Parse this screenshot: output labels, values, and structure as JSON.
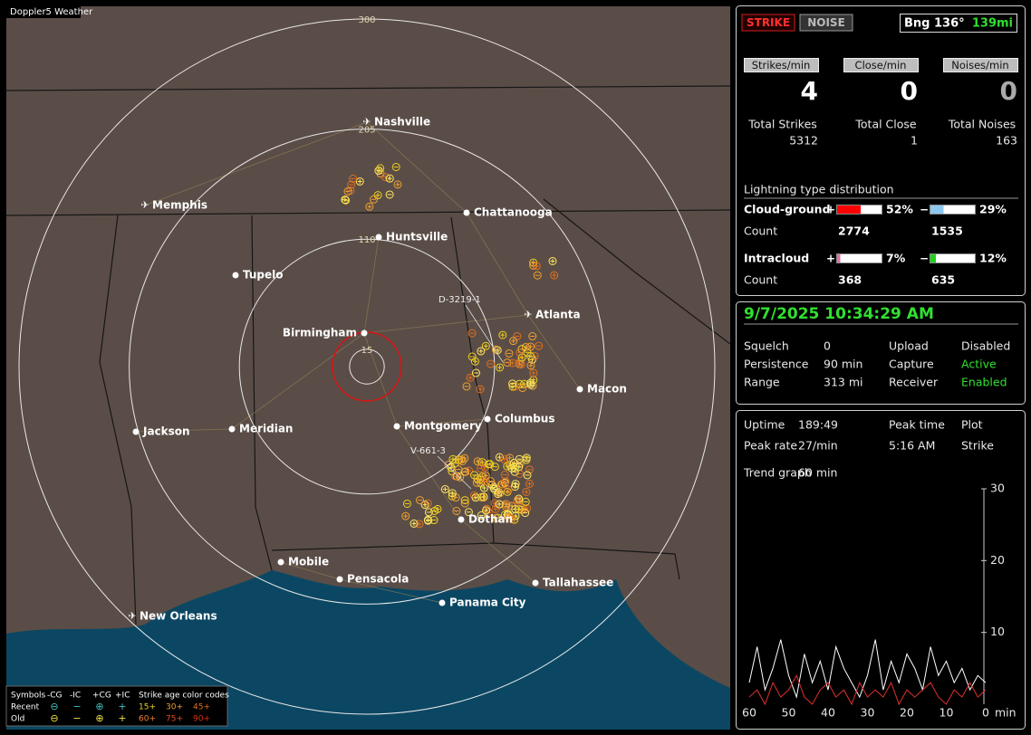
{
  "app_title": "Doppler5 Weather",
  "map": {
    "rings": [
      300,
      205,
      110,
      15
    ],
    "cities": [
      {
        "name": "Nashville",
        "kind": "airport"
      },
      {
        "name": "Memphis",
        "kind": "airport"
      },
      {
        "name": "Chattanooga",
        "kind": "city"
      },
      {
        "name": "Huntsville",
        "kind": "city"
      },
      {
        "name": "Tupelo",
        "kind": "city"
      },
      {
        "name": "Birmingham",
        "kind": "city"
      },
      {
        "name": "Atlanta",
        "kind": "airport"
      },
      {
        "name": "Macon",
        "kind": "city"
      },
      {
        "name": "Columbus",
        "kind": "city"
      },
      {
        "name": "Montgomery",
        "kind": "city"
      },
      {
        "name": "Jackson",
        "kind": "city"
      },
      {
        "name": "Meridian",
        "kind": "city"
      },
      {
        "name": "Dothan",
        "kind": "city"
      },
      {
        "name": "Mobile",
        "kind": "city"
      },
      {
        "name": "Pensacola",
        "kind": "city"
      },
      {
        "name": "Tallahassee",
        "kind": "city"
      },
      {
        "name": "Panama City",
        "kind": "city"
      },
      {
        "name": "New Orleans",
        "kind": "airport"
      }
    ],
    "stations": [
      "D-3219-1",
      "V-661-3"
    ],
    "legend": {
      "symbols": "Symbols",
      "types": [
        "-CG",
        "-IC",
        "+CG",
        "+IC"
      ],
      "age_title": "Strike age color codes",
      "recent": "Recent",
      "recent_ages": [
        "15+",
        "30+",
        "45+"
      ],
      "old": "Old",
      "old_ages": [
        "60+",
        "75+",
        "90+"
      ]
    }
  },
  "toolbar": {
    "strike": "STRIKE",
    "noise": "NOISE",
    "bearing": "Bng 136°",
    "distance": "139mi"
  },
  "rates": {
    "headers": [
      "Strikes/min",
      "Close/min",
      "Noises/min"
    ],
    "values": [
      4,
      0,
      0
    ]
  },
  "totals": {
    "labels": [
      "Total Strikes",
      "Total Close",
      "Total Noises"
    ],
    "values": [
      5312,
      1,
      163
    ]
  },
  "distribution": {
    "title": "Lightning type distribution",
    "count_label": "Count",
    "plus_sign": "+",
    "minus_sign": "−",
    "rows": [
      {
        "name": "Cloud-ground",
        "plus": {
          "value": 52,
          "label": "52%"
        },
        "minus": {
          "value": 29,
          "label": "29%"
        },
        "plus_count": 2774,
        "minus_count": 1535,
        "plus_color": "#ff0000",
        "minus_color": "#8cc8f0"
      },
      {
        "name": "Intracloud",
        "plus": {
          "value": 7,
          "label": "7%"
        },
        "minus": {
          "value": 12,
          "label": "12%"
        },
        "plus_count": 368,
        "minus_count": 635,
        "plus_color": "#e070a0",
        "minus_color": "#20d020"
      }
    ]
  },
  "status": {
    "datetime": "9/7/2025 10:34:29 AM",
    "rows": [
      [
        "Squelch",
        0,
        "Upload",
        "Disabled"
      ],
      [
        "Persistence",
        "90 min",
        "Capture",
        "Active"
      ],
      [
        "Range",
        "313 mi",
        "Receiver",
        "Enabled"
      ]
    ]
  },
  "stats": {
    "rows": [
      [
        "Uptime",
        "189:49",
        "Peak time",
        "Plot"
      ],
      [
        "Peak rate",
        "27/min",
        "5:16 AM",
        "Strike"
      ]
    ],
    "trend_label": "Trend graph",
    "trend_span": "60 min"
  },
  "trend": {
    "xlim": [
      60,
      0
    ],
    "ylim": [
      0,
      30
    ],
    "yticks": [
      10,
      20,
      30
    ],
    "xticks": [
      60,
      50,
      40,
      30,
      20,
      10,
      0
    ],
    "x_label": "min",
    "x": [
      60,
      58,
      56,
      54,
      52,
      50,
      48,
      46,
      44,
      42,
      40,
      38,
      36,
      34,
      32,
      30,
      28,
      26,
      24,
      22,
      20,
      18,
      16,
      14,
      12,
      10,
      8,
      6,
      4,
      2,
      0
    ],
    "series": [
      {
        "color": "#ffffff",
        "values": [
          3,
          8,
          2,
          5,
          9,
          4,
          1,
          7,
          3,
          6,
          2,
          8,
          5,
          3,
          1,
          4,
          9,
          2,
          6,
          3,
          7,
          5,
          2,
          8,
          4,
          6,
          3,
          5,
          2,
          4,
          3
        ]
      },
      {
        "color": "#e03030",
        "values": [
          1,
          2,
          0,
          3,
          1,
          2,
          4,
          1,
          0,
          2,
          3,
          1,
          2,
          0,
          3,
          1,
          2,
          1,
          3,
          0,
          2,
          1,
          2,
          3,
          1,
          0,
          2,
          1,
          3,
          1,
          2
        ]
      }
    ]
  }
}
